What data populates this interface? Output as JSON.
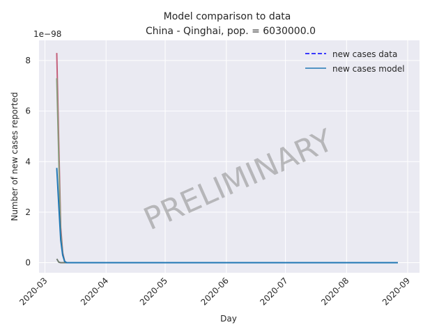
{
  "chart_data": {
    "type": "line",
    "title": "Model comparison to data",
    "subtitle": "China - Qinghai, pop. = 6030000.0",
    "xlabel": "Day",
    "ylabel": "Number of new cases reported",
    "y_offset_label": "1e−98",
    "watermark": "PRELIMINARY",
    "x_type": "date",
    "xlim": [
      "2020-02-27",
      "2020-09-07"
    ],
    "ylim": [
      -0.4,
      8.8
    ],
    "x_ticks": [
      "2020-03-01",
      "2020-04-01",
      "2020-05-01",
      "2020-06-01",
      "2020-07-01",
      "2020-08-01",
      "2020-09-01"
    ],
    "x_tick_labels": [
      "2020-03",
      "2020-04",
      "2020-05",
      "2020-06",
      "2020-07",
      "2020-08",
      "2020-09"
    ],
    "y_ticks": [
      0,
      2,
      4,
      6,
      8
    ],
    "y_tick_labels": [
      "0",
      "2",
      "4",
      "6",
      "8"
    ],
    "grid": true,
    "legend_position": "top-right",
    "legend": [
      {
        "label": "new cases data",
        "color": "#0000ff",
        "style": "dashed"
      },
      {
        "label": "new cases model",
        "color": "#1f77b4",
        "style": "solid"
      }
    ],
    "series": [
      {
        "color": "#c4607a",
        "style": "solid",
        "x": [
          "2020-03-07",
          "2020-03-08",
          "2020-03-09",
          "2020-03-10",
          "2020-03-11",
          "2020-03-12",
          "2020-04-01",
          "2020-06-01",
          "2020-08-27"
        ],
        "y": [
          8.3,
          4.8,
          1.4,
          0.4,
          0.05,
          0,
          0,
          0,
          0
        ]
      },
      {
        "color": "#8a9a7a",
        "style": "solid",
        "x": [
          "2020-03-07",
          "2020-03-08",
          "2020-03-09",
          "2020-03-10",
          "2020-03-11",
          "2020-03-12",
          "2020-04-01",
          "2020-06-01",
          "2020-08-27"
        ],
        "y": [
          7.3,
          4.2,
          1.2,
          0.35,
          0.04,
          0,
          0,
          0,
          0
        ]
      },
      {
        "color": "#6f7b6f",
        "style": "solid",
        "x": [
          "2020-03-07",
          "2020-03-08",
          "2020-03-09",
          "2020-03-12",
          "2020-04-01",
          "2020-08-27"
        ],
        "y": [
          0.15,
          0.02,
          0,
          0,
          0,
          0
        ]
      },
      {
        "color": "#1f77b4",
        "style": "solid",
        "x": [
          "2020-03-07",
          "2020-03-08",
          "2020-03-09",
          "2020-03-10",
          "2020-03-11",
          "2020-03-12",
          "2020-04-01",
          "2020-06-01",
          "2020-08-27"
        ],
        "y": [
          3.75,
          2.3,
          0.9,
          0.3,
          0.05,
          0,
          0,
          0,
          0
        ]
      }
    ],
    "colors": {
      "plot_background": "#eaeaf2",
      "grid": "#ffffff",
      "text": "#262626"
    }
  }
}
